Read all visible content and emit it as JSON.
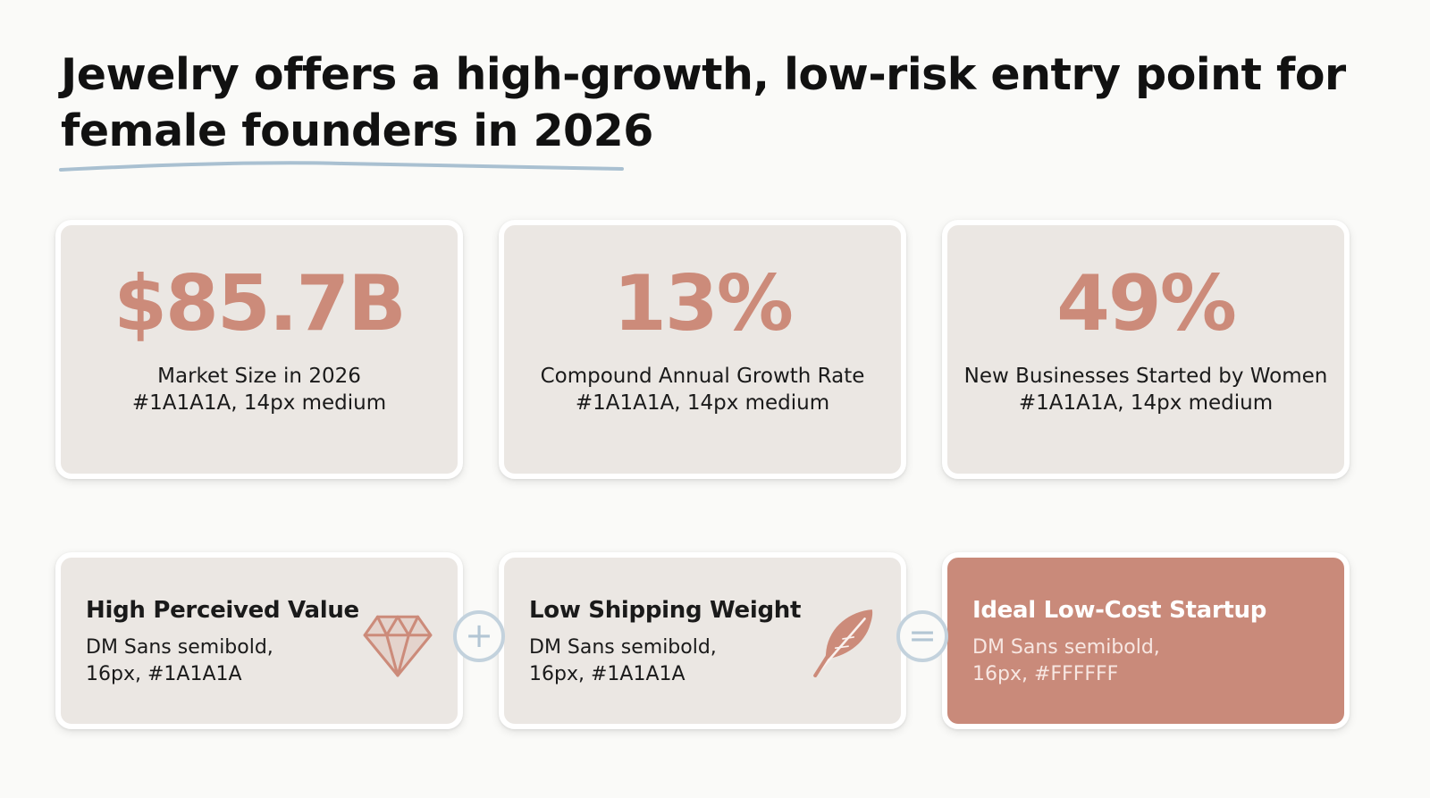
{
  "slide": {
    "title": "Jewelry offers a high-growth, low-risk entry point for female founders in 2026"
  },
  "stats": [
    {
      "value": "$85.7B",
      "label": "Market Size in 2026",
      "note": "#1A1A1A, 14px medium"
    },
    {
      "value": "13%",
      "label": "Compound Annual Growth Rate",
      "note": "#1A1A1A, 14px medium"
    },
    {
      "value": "49%",
      "label": "New Businesses Started by Women",
      "note": "#1A1A1A, 14px medium"
    }
  ],
  "features": [
    {
      "title": "High Perceived Value",
      "desc": "DM Sans semibold, 16px, #1A1A1A",
      "icon": "diamond-icon"
    },
    {
      "title": "Low Shipping Weight",
      "desc": "DM Sans semibold, 16px, #1A1A1A",
      "icon": "feather-icon"
    },
    {
      "title": "Ideal Low-Cost Startup",
      "desc": "DM Sans semibold, 16px, #FFFFFF"
    }
  ],
  "operators": {
    "plus": "+",
    "equals": "="
  },
  "colors": {
    "accent": "#CC8B7A",
    "card_background": "#EBE7E3",
    "highlight_card": "#C98A7A",
    "underline": "#A9C0D1",
    "text": "#1A1A1A"
  }
}
